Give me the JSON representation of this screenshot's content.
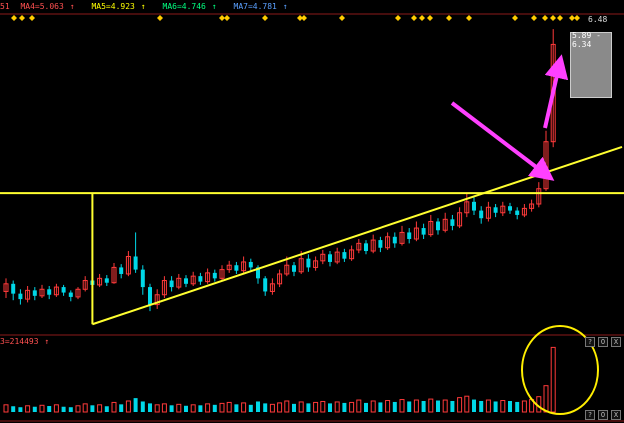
{
  "header": {
    "indicators": [
      {
        "label": "MA4=5.063",
        "color": "#ff5050"
      },
      {
        "label": "MA5=4.923",
        "color": "#ffff00"
      },
      {
        "label": "MA6=4.746",
        "color": "#00ff80"
      },
      {
        "label": "MA7=4.781",
        "color": "#5aa0ff"
      }
    ],
    "left_fragment": "51",
    "arrow_glyph": "↑"
  },
  "price_panel": {
    "high_label": "6.48",
    "range_label": "5.89 - 6.34",
    "current_marker": "6.34"
  },
  "volume_panel": {
    "label": "3=214493",
    "arrow_glyph": "↑"
  },
  "panel_buttons": [
    "?",
    "O",
    "X"
  ],
  "colors": {
    "up_candle": "#ff3a3a",
    "down_candle": "#00d8e8",
    "trend_line": "#ffff30",
    "annotation_arrow": "#ff40ff",
    "highlight_circle": "#ffee00",
    "dot_marker": "#ffcc00",
    "grid_line": "#8b1a1a"
  },
  "chart_data": {
    "type": "candlestick",
    "title": "",
    "candles": [
      {
        "o": 4.08,
        "c": 4.15,
        "h": 4.2,
        "l": 4.02
      },
      {
        "o": 4.15,
        "c": 4.06,
        "h": 4.18,
        "l": 4.0
      },
      {
        "o": 4.06,
        "c": 4.01,
        "h": 4.1,
        "l": 3.96
      },
      {
        "o": 4.01,
        "c": 4.09,
        "h": 4.13,
        "l": 3.98
      },
      {
        "o": 4.09,
        "c": 4.04,
        "h": 4.12,
        "l": 4.0
      },
      {
        "o": 4.04,
        "c": 4.1,
        "h": 4.14,
        "l": 4.02
      },
      {
        "o": 4.1,
        "c": 4.05,
        "h": 4.13,
        "l": 4.01
      },
      {
        "o": 4.05,
        "c": 4.12,
        "h": 4.15,
        "l": 4.03
      },
      {
        "o": 4.12,
        "c": 4.07,
        "h": 4.14,
        "l": 4.04
      },
      {
        "o": 4.07,
        "c": 4.03,
        "h": 4.09,
        "l": 3.99
      },
      {
        "o": 4.03,
        "c": 4.1,
        "h": 4.12,
        "l": 4.01
      },
      {
        "o": 4.1,
        "c": 4.18,
        "h": 4.22,
        "l": 4.08
      },
      {
        "o": 4.18,
        "c": 4.14,
        "h": 4.21,
        "l": 4.11
      },
      {
        "o": 4.14,
        "c": 4.2,
        "h": 4.24,
        "l": 4.12
      },
      {
        "o": 4.2,
        "c": 4.16,
        "h": 4.23,
        "l": 4.13
      },
      {
        "o": 4.16,
        "c": 4.3,
        "h": 4.34,
        "l": 4.15
      },
      {
        "o": 4.3,
        "c": 4.24,
        "h": 4.33,
        "l": 4.2
      },
      {
        "o": 4.24,
        "c": 4.4,
        "h": 4.45,
        "l": 4.22
      },
      {
        "o": 4.4,
        "c": 4.28,
        "h": 4.62,
        "l": 4.25
      },
      {
        "o": 4.28,
        "c": 4.12,
        "h": 4.32,
        "l": 4.05
      },
      {
        "o": 4.12,
        "c": 3.96,
        "h": 4.15,
        "l": 3.9
      },
      {
        "o": 3.96,
        "c": 4.05,
        "h": 4.1,
        "l": 3.92
      },
      {
        "o": 4.05,
        "c": 4.18,
        "h": 4.22,
        "l": 4.02
      },
      {
        "o": 4.18,
        "c": 4.12,
        "h": 4.22,
        "l": 4.08
      },
      {
        "o": 4.12,
        "c": 4.2,
        "h": 4.24,
        "l": 4.1
      },
      {
        "o": 4.2,
        "c": 4.15,
        "h": 4.23,
        "l": 4.12
      },
      {
        "o": 4.15,
        "c": 4.22,
        "h": 4.26,
        "l": 4.13
      },
      {
        "o": 4.22,
        "c": 4.17,
        "h": 4.25,
        "l": 4.14
      },
      {
        "o": 4.17,
        "c": 4.25,
        "h": 4.29,
        "l": 4.15
      },
      {
        "o": 4.25,
        "c": 4.2,
        "h": 4.28,
        "l": 4.17
      },
      {
        "o": 4.2,
        "c": 4.28,
        "h": 4.32,
        "l": 4.18
      },
      {
        "o": 4.28,
        "c": 4.32,
        "h": 4.36,
        "l": 4.25
      },
      {
        "o": 4.32,
        "c": 4.27,
        "h": 4.35,
        "l": 4.24
      },
      {
        "o": 4.27,
        "c": 4.35,
        "h": 4.4,
        "l": 4.25
      },
      {
        "o": 4.35,
        "c": 4.3,
        "h": 4.38,
        "l": 4.27
      },
      {
        "o": 4.3,
        "c": 4.2,
        "h": 4.32,
        "l": 4.15
      },
      {
        "o": 4.2,
        "c": 4.08,
        "h": 4.22,
        "l": 4.04
      },
      {
        "o": 4.08,
        "c": 4.15,
        "h": 4.2,
        "l": 4.05
      },
      {
        "o": 4.15,
        "c": 4.24,
        "h": 4.28,
        "l": 4.12
      },
      {
        "o": 4.24,
        "c": 4.32,
        "h": 4.4,
        "l": 4.22
      },
      {
        "o": 4.32,
        "c": 4.26,
        "h": 4.35,
        "l": 4.22
      },
      {
        "o": 4.26,
        "c": 4.38,
        "h": 4.45,
        "l": 4.24
      },
      {
        "o": 4.38,
        "c": 4.3,
        "h": 4.42,
        "l": 4.26
      },
      {
        "o": 4.3,
        "c": 4.36,
        "h": 4.4,
        "l": 4.27
      },
      {
        "o": 4.36,
        "c": 4.42,
        "h": 4.46,
        "l": 4.33
      },
      {
        "o": 4.42,
        "c": 4.35,
        "h": 4.45,
        "l": 4.31
      },
      {
        "o": 4.35,
        "c": 4.44,
        "h": 4.48,
        "l": 4.33
      },
      {
        "o": 4.44,
        "c": 4.38,
        "h": 4.47,
        "l": 4.35
      },
      {
        "o": 4.38,
        "c": 4.46,
        "h": 4.5,
        "l": 4.36
      },
      {
        "o": 4.46,
        "c": 4.52,
        "h": 4.56,
        "l": 4.43
      },
      {
        "o": 4.52,
        "c": 4.45,
        "h": 4.55,
        "l": 4.42
      },
      {
        "o": 4.45,
        "c": 4.55,
        "h": 4.6,
        "l": 4.43
      },
      {
        "o": 4.55,
        "c": 4.48,
        "h": 4.58,
        "l": 4.44
      },
      {
        "o": 4.48,
        "c": 4.58,
        "h": 4.62,
        "l": 4.46
      },
      {
        "o": 4.58,
        "c": 4.52,
        "h": 4.62,
        "l": 4.48
      },
      {
        "o": 4.52,
        "c": 4.62,
        "h": 4.68,
        "l": 4.5
      },
      {
        "o": 4.62,
        "c": 4.56,
        "h": 4.66,
        "l": 4.52
      },
      {
        "o": 4.56,
        "c": 4.66,
        "h": 4.72,
        "l": 4.54
      },
      {
        "o": 4.66,
        "c": 4.6,
        "h": 4.7,
        "l": 4.56
      },
      {
        "o": 4.6,
        "c": 4.72,
        "h": 4.78,
        "l": 4.58
      },
      {
        "o": 4.72,
        "c": 4.64,
        "h": 4.75,
        "l": 4.6
      },
      {
        "o": 4.64,
        "c": 4.74,
        "h": 4.8,
        "l": 4.62
      },
      {
        "o": 4.74,
        "c": 4.68,
        "h": 4.78,
        "l": 4.64
      },
      {
        "o": 4.68,
        "c": 4.8,
        "h": 4.85,
        "l": 4.66
      },
      {
        "o": 4.8,
        "c": 4.9,
        "h": 4.98,
        "l": 4.76
      },
      {
        "o": 4.9,
        "c": 4.82,
        "h": 4.94,
        "l": 4.78
      },
      {
        "o": 4.82,
        "c": 4.75,
        "h": 4.86,
        "l": 4.7
      },
      {
        "o": 4.75,
        "c": 4.85,
        "h": 4.9,
        "l": 4.72
      },
      {
        "o": 4.85,
        "c": 4.8,
        "h": 4.88,
        "l": 4.76
      },
      {
        "o": 4.8,
        "c": 4.86,
        "h": 4.9,
        "l": 4.77
      },
      {
        "o": 4.86,
        "c": 4.82,
        "h": 4.89,
        "l": 4.79
      },
      {
        "o": 4.82,
        "c": 4.78,
        "h": 4.85,
        "l": 4.74
      },
      {
        "o": 4.78,
        "c": 4.84,
        "h": 4.88,
        "l": 4.76
      },
      {
        "o": 4.84,
        "c": 4.88,
        "h": 4.92,
        "l": 4.81
      },
      {
        "o": 4.88,
        "c": 5.02,
        "h": 5.08,
        "l": 4.85
      },
      {
        "o": 5.02,
        "c": 5.45,
        "h": 5.55,
        "l": 5.0
      },
      {
        "o": 5.45,
        "c": 6.34,
        "h": 6.48,
        "l": 5.4
      }
    ],
    "volume": [
      30,
      24,
      20,
      26,
      22,
      28,
      25,
      30,
      22,
      20,
      26,
      34,
      28,
      30,
      24,
      40,
      32,
      46,
      58,
      44,
      36,
      30,
      34,
      28,
      32,
      26,
      30,
      28,
      34,
      30,
      36,
      40,
      32,
      38,
      30,
      44,
      36,
      32,
      38,
      46,
      34,
      42,
      36,
      40,
      44,
      36,
      42,
      38,
      40,
      50,
      38,
      46,
      40,
      48,
      42,
      52,
      44,
      50,
      46,
      54,
      48,
      50,
      46,
      60,
      66,
      52,
      46,
      50,
      44,
      48,
      46,
      42,
      46,
      52,
      64,
      110,
      270
    ],
    "ylim": [
      3.7,
      6.6
    ],
    "volume_max": 280,
    "trend_line": {
      "from_index": 12,
      "from_price": 3.78,
      "to_index": 80,
      "to_price": 5.28
    },
    "resistance_price": 4.98,
    "grid": true
  }
}
